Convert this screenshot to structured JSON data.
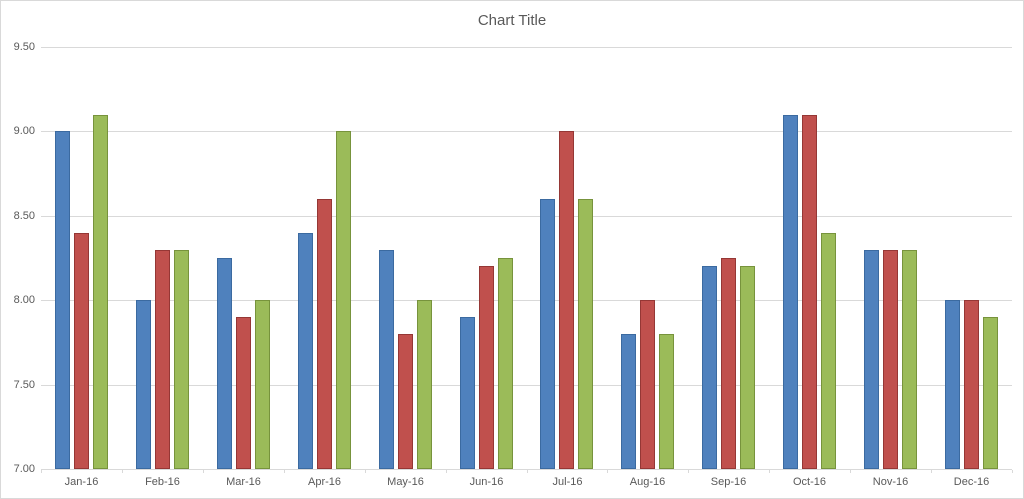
{
  "chart_data": {
    "type": "bar",
    "title": "Chart Title",
    "title_color": "#595959",
    "categories": [
      "Jan-16",
      "Feb-16",
      "Mar-16",
      "Apr-16",
      "May-16",
      "Jun-16",
      "Jul-16",
      "Aug-16",
      "Sep-16",
      "Oct-16",
      "Nov-16",
      "Dec-16"
    ],
    "series": [
      {
        "color_name": "blue",
        "fill": "#4F81BD",
        "border": "#3B6AA0",
        "values": [
          9.0,
          8.0,
          8.25,
          8.4,
          8.3,
          7.9,
          8.6,
          7.8,
          8.2,
          9.1,
          8.3,
          8.0
        ]
      },
      {
        "color_name": "red",
        "fill": "#C0504D",
        "border": "#953735",
        "values": [
          8.4,
          8.3,
          7.9,
          8.6,
          7.8,
          8.2,
          9.0,
          8.0,
          8.25,
          9.1,
          8.3,
          8.0
        ]
      },
      {
        "color_name": "green",
        "fill": "#9BBB59",
        "border": "#77933C",
        "values": [
          9.1,
          8.3,
          8.0,
          9.0,
          8.0,
          8.25,
          8.6,
          7.8,
          8.2,
          8.4,
          8.3,
          7.9
        ]
      }
    ],
    "y_axis": {
      "min": 7.0,
      "max": 9.5,
      "step": 0.5,
      "tick_labels": [
        "7.00",
        "7.50",
        "8.00",
        "8.50",
        "9.00",
        "9.50"
      ],
      "label_color": "#595959",
      "gridline_color": "#D9D9D9"
    },
    "x_axis": {
      "label_color": "#595959",
      "axis_line_color": "#D9D9D9",
      "tick_color": "#D9D9D9"
    },
    "legend": "none",
    "grid": true,
    "xlabel": "",
    "ylabel": ""
  }
}
